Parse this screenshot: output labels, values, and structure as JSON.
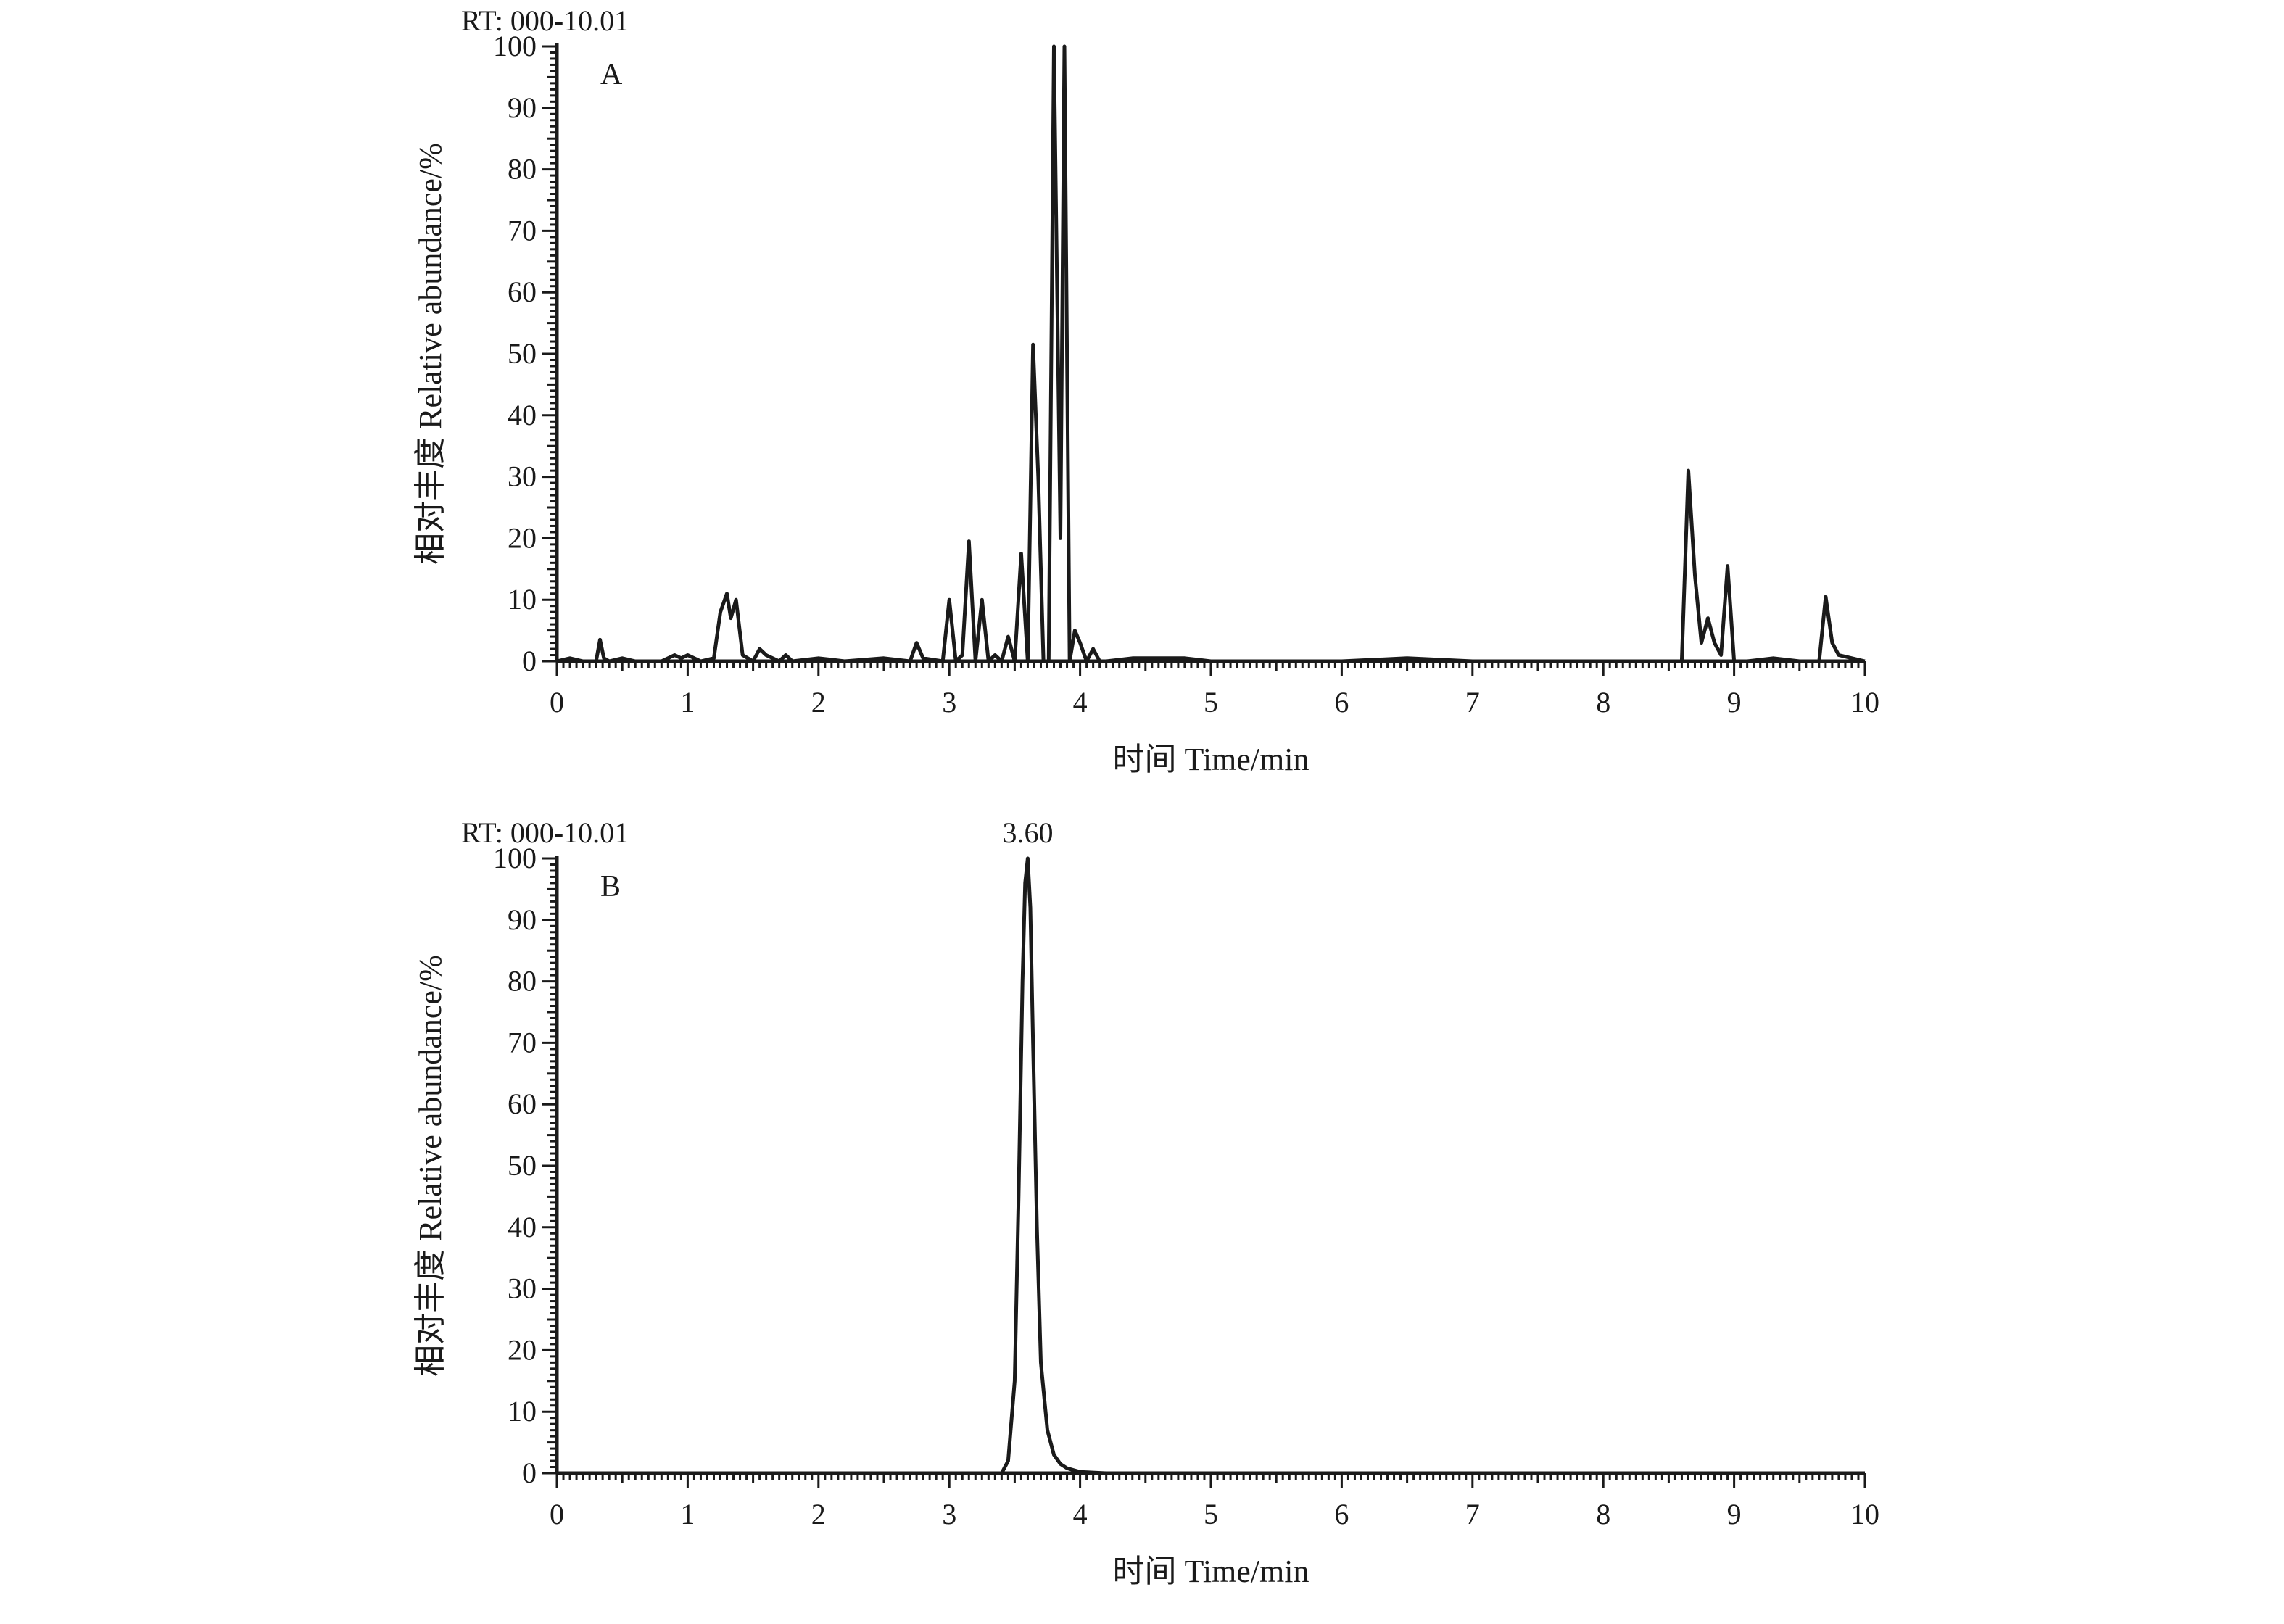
{
  "chart_data": [
    {
      "type": "line",
      "panel_label": "A",
      "rt_label": "RT: 000-10.01",
      "xlabel": "时间 Time/min",
      "ylabel": "相对丰度 Relative abundance/%",
      "xlim": [
        0,
        10
      ],
      "ylim": [
        0,
        100
      ],
      "x_ticks": [
        "0",
        "1",
        "2",
        "3",
        "4",
        "5",
        "6",
        "7",
        "8",
        "9",
        "10"
      ],
      "y_ticks": [
        "0",
        "10",
        "20",
        "30",
        "40",
        "50",
        "60",
        "70",
        "80",
        "90",
        "100"
      ],
      "peak_annotations": [],
      "series": [
        {
          "color": "#1a1a1a",
          "x": [
            0,
            0.1,
            0.2,
            0.3,
            0.33,
            0.36,
            0.4,
            0.5,
            0.6,
            0.8,
            0.9,
            0.95,
            1.0,
            1.05,
            1.1,
            1.2,
            1.25,
            1.3,
            1.33,
            1.37,
            1.42,
            1.5,
            1.55,
            1.6,
            1.7,
            1.75,
            1.8,
            2.0,
            2.2,
            2.5,
            2.7,
            2.75,
            2.8,
            2.95,
            3.0,
            3.05,
            3.1,
            3.15,
            3.2,
            3.25,
            3.3,
            3.35,
            3.4,
            3.45,
            3.5,
            3.55,
            3.6,
            3.64,
            3.68,
            3.72,
            3.76,
            3.8,
            3.85,
            3.88,
            3.92,
            3.96,
            4.0,
            4.05,
            4.1,
            4.15,
            4.2,
            4.4,
            4.8,
            5.0,
            6.0,
            6.5,
            7.0,
            8.0,
            8.6,
            8.65,
            8.7,
            8.75,
            8.8,
            8.85,
            8.9,
            8.95,
            9.0,
            9.1,
            9.3,
            9.5,
            9.65,
            9.7,
            9.75,
            9.8,
            9.9,
            10.0
          ],
          "y": [
            0,
            0.5,
            0,
            0,
            3.5,
            0.5,
            0,
            0.5,
            0,
            0,
            1,
            0.5,
            1,
            0.5,
            0,
            0.5,
            8,
            11,
            7,
            10,
            1,
            0,
            2,
            1,
            0,
            1,
            0,
            0.5,
            0,
            0.5,
            0,
            3,
            0.5,
            0,
            10,
            0,
            1,
            19.5,
            0,
            10,
            0,
            1,
            0,
            4,
            0,
            17.5,
            0,
            51.5,
            30,
            0,
            0,
            100,
            20,
            100,
            0,
            5,
            3,
            0,
            2,
            0,
            0,
            0.5,
            0.5,
            0,
            0,
            0.5,
            0,
            0,
            0,
            31,
            14,
            3,
            7,
            3,
            1,
            15.5,
            0,
            0,
            0.5,
            0,
            0,
            10.5,
            3,
            1,
            0.5,
            0
          ]
        }
      ]
    },
    {
      "type": "line",
      "panel_label": "B",
      "rt_label": "RT: 000-10.01",
      "xlabel": "时间 Time/min",
      "ylabel": "相对丰度 Relative abundance/%",
      "xlim": [
        0,
        10
      ],
      "ylim": [
        0,
        100
      ],
      "x_ticks": [
        "0",
        "1",
        "2",
        "3",
        "4",
        "5",
        "6",
        "7",
        "8",
        "9",
        "10"
      ],
      "y_ticks": [
        "0",
        "10",
        "20",
        "30",
        "40",
        "50",
        "60",
        "70",
        "80",
        "90",
        "100"
      ],
      "peak_annotations": [
        {
          "x": 3.6,
          "y": 100,
          "label": "3.60"
        }
      ],
      "series": [
        {
          "color": "#1a1a1a",
          "x": [
            0,
            1,
            2,
            3,
            3.4,
            3.45,
            3.5,
            3.53,
            3.56,
            3.58,
            3.6,
            3.62,
            3.64,
            3.67,
            3.7,
            3.75,
            3.8,
            3.85,
            3.9,
            4.0,
            4.2,
            5.0,
            6.0,
            7.0,
            8.0,
            9.0,
            10.0
          ],
          "y": [
            0,
            0,
            0,
            0,
            0,
            2,
            15,
            45,
            80,
            96,
            100,
            92,
            70,
            40,
            18,
            7,
            3,
            1.5,
            0.8,
            0.2,
            0,
            0,
            0,
            0,
            0,
            0,
            0
          ]
        }
      ]
    }
  ]
}
